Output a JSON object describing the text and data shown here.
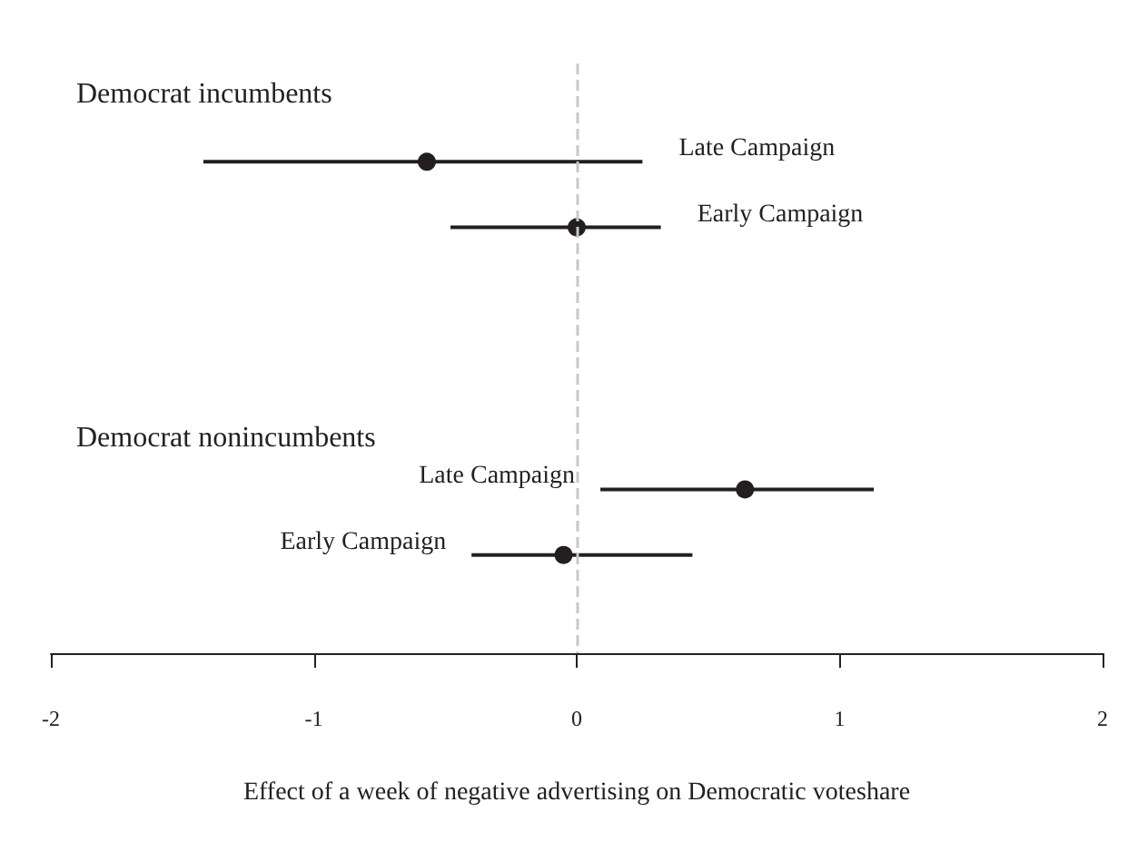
{
  "chart_data": {
    "type": "scatter",
    "orientation": "horizontal",
    "xlabel": "Effect of a week of negative advertising on Democratic voteshare",
    "categories": [
      null,
      "Late Campaign",
      "Early Campaign",
      null,
      null,
      null,
      "Late Campaign",
      "Early Campaign",
      null
    ],
    "series": [
      {
        "color": "#231f20",
        "values": [
          null,
          -0.57,
          0,
          null,
          null,
          null,
          0.64,
          -0.05,
          null
        ],
        "errors": [
          null,
          [
            -1.42,
            0.25
          ],
          [
            -0.48,
            0.32
          ],
          null,
          null,
          null,
          [
            0.09,
            1.13
          ],
          [
            -0.4,
            0.44
          ],
          null
        ]
      }
    ],
    "annotations": [
      "Democrat incumbents",
      "Democrat nonincumbents"
    ],
    "xlim": [
      -2,
      2
    ],
    "xticks": [
      -2,
      -1,
      0,
      1,
      2
    ],
    "marker": "circle",
    "grid": false,
    "ref_lines": [
      {
        "axis": "x",
        "value": 0,
        "color": "#c8c8c8",
        "line_style": "dashed"
      }
    ]
  }
}
